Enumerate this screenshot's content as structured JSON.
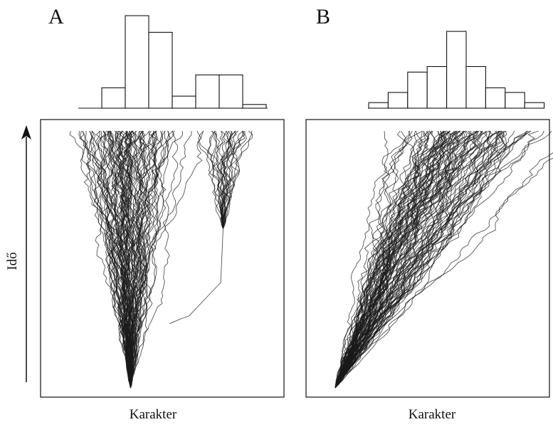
{
  "chart_data": [
    {
      "panel": "A",
      "type": "histogram + random-walk lineages",
      "xlabel": "Karakter",
      "ylabel": "Idő",
      "histogram": {
        "bins": 7,
        "values": [
          0.22,
          1.0,
          0.82,
          0.13,
          0.36,
          0.36,
          0.04
        ],
        "ylim": [
          0,
          1
        ]
      },
      "lineages": {
        "root_x": 0.37,
        "branch_time": 0.62,
        "groups": [
          {
            "name": "main",
            "count": 90,
            "spread": 0.075,
            "end_x": 0.37
          },
          {
            "name": "branch",
            "count": 26,
            "spread": 0.05,
            "end_x": 0.76
          }
        ]
      }
    },
    {
      "panel": "B",
      "type": "histogram + random-walk lineages",
      "xlabel": "Karakter",
      "ylabel": "",
      "histogram": {
        "bins": 9,
        "values": [
          0.06,
          0.17,
          0.39,
          0.45,
          0.83,
          0.45,
          0.22,
          0.17,
          0.06
        ],
        "ylim": [
          0,
          1
        ]
      },
      "lineages": {
        "root_x": 0.12,
        "drift": 0.55,
        "groups": [
          {
            "name": "trend",
            "count": 100,
            "spread": 0.12,
            "end_x": 0.67
          }
        ]
      }
    }
  ],
  "labels": {
    "panel_a": "A",
    "panel_b": "B",
    "y_axis": "Idő",
    "x_axis_a": "Karakter",
    "x_axis_b": "Karakter"
  },
  "colors": {
    "line": "#1a1a1a",
    "frame": "#111111",
    "background": "#ffffff"
  }
}
